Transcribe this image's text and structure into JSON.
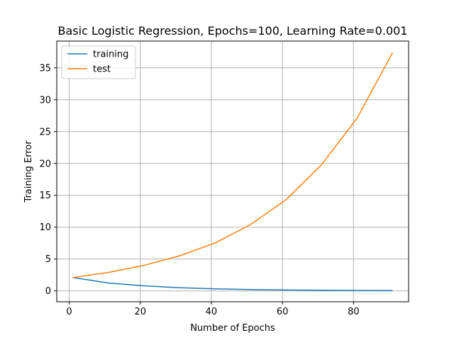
{
  "chart_data": {
    "type": "line",
    "title": "Basic Logistic Regression, Epochs=100, Learning Rate=0.001",
    "xlabel": "Number of Epochs",
    "ylabel": "Training Error",
    "x": [
      1,
      11,
      21,
      31,
      41,
      51,
      61,
      71,
      81,
      91
    ],
    "xlim": [
      -3.5,
      95.5
    ],
    "ylim": [
      -1.7,
      39.2
    ],
    "xticks": [
      0,
      20,
      40,
      60,
      80
    ],
    "yticks": [
      0,
      5,
      10,
      15,
      20,
      25,
      30,
      35
    ],
    "grid": true,
    "legend_position": "upper-left",
    "series": [
      {
        "name": "training",
        "color": "#1f77b4",
        "values": [
          2.1,
          1.25,
          0.8,
          0.5,
          0.33,
          0.22,
          0.15,
          0.1,
          0.07,
          0.05
        ]
      },
      {
        "name": "test",
        "color": "#ff7f0e",
        "values": [
          2.1,
          2.9,
          4.0,
          5.5,
          7.5,
          10.4,
          14.3,
          19.8,
          27.1,
          37.4
        ]
      }
    ]
  }
}
